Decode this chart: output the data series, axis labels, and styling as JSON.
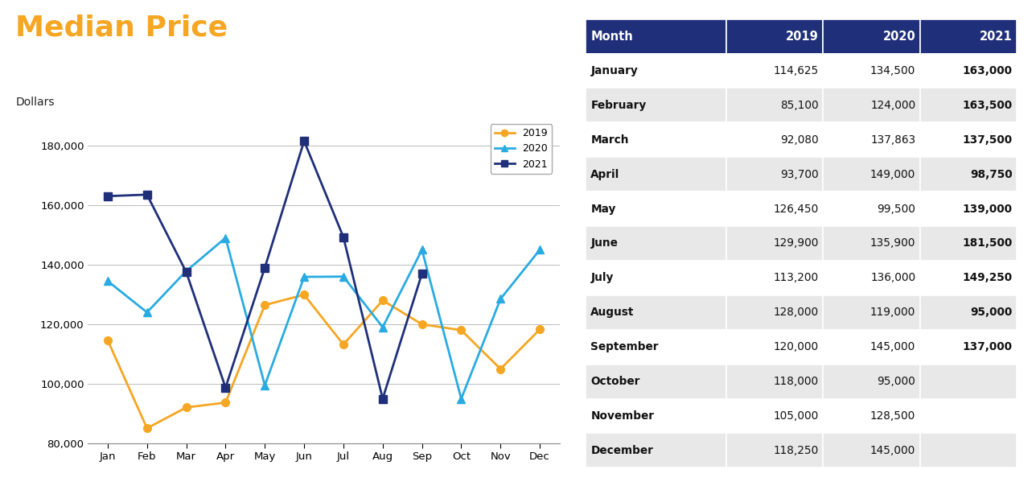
{
  "title": "Median Price",
  "title_color": "#F5A623",
  "ylabel": "Dollars",
  "background_color": "#ffffff",
  "ylim": [
    80000,
    190000
  ],
  "yticks": [
    80000,
    100000,
    120000,
    140000,
    160000,
    180000
  ],
  "months": [
    "Jan",
    "Feb",
    "Mar",
    "Apr",
    "May",
    "Jun",
    "Jul",
    "Aug",
    "Sep",
    "Oct",
    "Nov",
    "Dec"
  ],
  "series_2019": [
    114625,
    85100,
    92080,
    93700,
    126450,
    129900,
    113200,
    128000,
    120000,
    118000,
    105000,
    118250
  ],
  "series_2020": [
    134500,
    124000,
    137863,
    149000,
    99500,
    135900,
    136000,
    119000,
    145000,
    95000,
    128500,
    145000
  ],
  "series_2021": [
    163000,
    163500,
    137500,
    98750,
    139000,
    181500,
    149250,
    95000,
    137000,
    null,
    null,
    null
  ],
  "color_2019": "#F5A623",
  "color_2020": "#29ABE2",
  "color_2021": "#1F2F7A",
  "marker_2019": "o",
  "marker_2020": "^",
  "marker_2021": "s",
  "table_header_bg": "#1F2F7A",
  "table_header_fg": "#ffffff",
  "table_header_cols": [
    "Month",
    "2019",
    "2020",
    "2021"
  ],
  "table_rows": [
    [
      "January",
      "114,625",
      "134,500",
      "163,000"
    ],
    [
      "February",
      "85,100",
      "124,000",
      "163,500"
    ],
    [
      "March",
      "92,080",
      "137,863",
      "137,500"
    ],
    [
      "April",
      "93,700",
      "149,000",
      "98,750"
    ],
    [
      "May",
      "126,450",
      "99,500",
      "139,000"
    ],
    [
      "June",
      "129,900",
      "135,900",
      "181,500"
    ],
    [
      "July",
      "113,200",
      "136,000",
      "149,250"
    ],
    [
      "August",
      "128,000",
      "119,000",
      "95,000"
    ],
    [
      "September",
      "120,000",
      "145,000",
      "137,000"
    ],
    [
      "October",
      "118,000",
      "95,000",
      ""
    ],
    [
      "November",
      "105,000",
      "128,500",
      ""
    ],
    [
      "December",
      "118,250",
      "145,000",
      ""
    ]
  ],
  "legend_labels": [
    "2019",
    "2020",
    "2021"
  ],
  "linewidth": 2.0,
  "markersize": 7
}
